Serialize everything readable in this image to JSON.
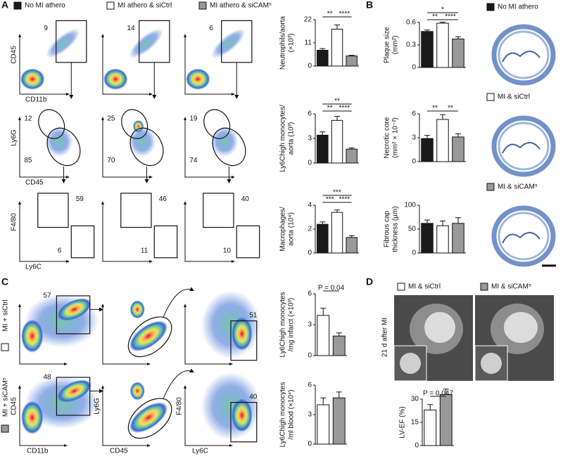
{
  "panel_letters": [
    "A",
    "B",
    "C",
    "D"
  ],
  "legend_a": [
    {
      "text": "No MI athero",
      "color": "#1a1a1a"
    },
    {
      "text": "MI athero & siCtrl",
      "color": "#ffffff"
    },
    {
      "text": "MI athero & siCAM⁵",
      "color": "#999999"
    }
  ],
  "flow_a": [
    {
      "x": "CD11b",
      "y": "CD45",
      "gates": [
        [
          9
        ],
        [
          14
        ],
        [
          6
        ]
      ]
    },
    {
      "x": "CD45",
      "y": "Ly6G",
      "gates": [
        [
          12,
          85
        ],
        [
          25,
          70
        ],
        [
          19,
          74
        ]
      ]
    },
    {
      "x": "Ly6C",
      "y": "F4/80",
      "gates": [
        [
          59,
          6
        ],
        [
          46,
          11
        ],
        [
          40,
          10
        ]
      ]
    }
  ],
  "legend_b": [
    {
      "text": "No MI athero",
      "color": "#1a1a1a"
    },
    {
      "text": "MI & siCtrl",
      "color": "#ffffff"
    },
    {
      "text": "MI & siCAM⁵",
      "color": "#999999"
    }
  ],
  "flow_c": {
    "x": [
      "CD11b",
      "CD45",
      "Ly6C"
    ],
    "y": [
      "CD45",
      "Ly6G",
      "F4/80"
    ],
    "rows": [
      {
        "label": "MI + siCtrl",
        "color": "#ffffff",
        "gates": [
          57,
          51
        ]
      },
      {
        "label": "MI + siCAM⁵",
        "color": "#999999",
        "gates": [
          48,
          40
        ]
      }
    ]
  },
  "panel_d": {
    "legend": [
      {
        "text": "MI & siCtrl",
        "color": "#ffffff"
      },
      {
        "text": "MI & siCAM⁵",
        "color": "#999999"
      }
    ],
    "side_label": "21 d after MI"
  },
  "chart_data": [
    {
      "type": "bar",
      "ylabel": [
        "Neutrophils/aorta",
        "(×10³)"
      ],
      "values": [
        7.5,
        17.5,
        4.8
      ],
      "errors": [
        0.8,
        2.0,
        0.3
      ],
      "colors": [
        "#1a1a1a",
        "#ffffff",
        "#999999"
      ],
      "ylim": [
        0,
        22
      ],
      "yticks": [
        0,
        11,
        22
      ],
      "significance": [
        {
          "bars": [
            0,
            1
          ],
          "label": "**"
        },
        {
          "bars": [
            1,
            2
          ],
          "label": "****"
        }
      ]
    },
    {
      "type": "bar",
      "ylabel": [
        "Ly6Chigh monocytes/",
        "aorta (10³)"
      ],
      "values": [
        3.4,
        5.2,
        1.7
      ],
      "errors": [
        0.4,
        0.5,
        0.15
      ],
      "colors": [
        "#1a1a1a",
        "#ffffff",
        "#999999"
      ],
      "ylim": [
        0,
        6
      ],
      "yticks": [
        0,
        3,
        6
      ],
      "significance": [
        {
          "bars": [
            0,
            1
          ],
          "label": "**"
        },
        {
          "bars": [
            1,
            2
          ],
          "label": "****"
        },
        {
          "bars": [
            0,
            2
          ],
          "label": "**"
        }
      ]
    },
    {
      "type": "bar",
      "ylabel": [
        "Macrophages/",
        "aorta (10⁴)"
      ],
      "values": [
        2.4,
        3.4,
        1.3
      ],
      "errors": [
        0.2,
        0.2,
        0.15
      ],
      "colors": [
        "#1a1a1a",
        "#ffffff",
        "#999999"
      ],
      "ylim": [
        0,
        4
      ],
      "yticks": [
        0,
        2,
        4
      ],
      "significance": [
        {
          "bars": [
            0,
            1
          ],
          "label": "***"
        },
        {
          "bars": [
            1,
            2
          ],
          "label": "****"
        },
        {
          "bars": [
            0,
            2
          ],
          "label": "***"
        }
      ]
    },
    {
      "type": "bar",
      "ylabel": [
        "Plaque size",
        "(mm²)"
      ],
      "values": [
        0.48,
        0.59,
        0.38
      ],
      "errors": [
        0.02,
        0.015,
        0.03
      ],
      "colors": [
        "#1a1a1a",
        "#ffffff",
        "#999999"
      ],
      "ylim": [
        0,
        0.6
      ],
      "yticks": [
        0,
        0.3,
        0.6
      ],
      "significance": [
        {
          "bars": [
            0,
            1
          ],
          "label": "**"
        },
        {
          "bars": [
            1,
            2
          ],
          "label": "****"
        },
        {
          "bars": [
            0,
            2
          ],
          "label": "*"
        }
      ]
    },
    {
      "type": "bar",
      "ylabel": [
        "Necrotic core",
        "(mm² × 10⁻²)"
      ],
      "values": [
        2.9,
        5.3,
        3.1
      ],
      "errors": [
        0.4,
        0.6,
        0.4
      ],
      "colors": [
        "#1a1a1a",
        "#ffffff",
        "#999999"
      ],
      "ylim": [
        0,
        6
      ],
      "yticks": [
        0,
        3,
        6
      ],
      "significance": [
        {
          "bars": [
            0,
            1
          ],
          "label": "**"
        },
        {
          "bars": [
            1,
            2
          ],
          "label": "**"
        }
      ]
    },
    {
      "type": "bar",
      "ylabel": [
        "Fibrous cap",
        "thickness (µm)"
      ],
      "values": [
        62,
        57,
        62
      ],
      "errors": [
        7,
        10,
        12
      ],
      "colors": [
        "#1a1a1a",
        "#ffffff",
        "#999999"
      ],
      "ylim": [
        0,
        100
      ],
      "yticks": [
        0,
        50,
        100
      ],
      "significance": []
    },
    {
      "type": "bar",
      "ylabel": [
        "Ly6Chigh monocytes",
        "/mg infarct (×10³)"
      ],
      "values": [
        3.9,
        1.9
      ],
      "errors": [
        0.7,
        0.3
      ],
      "colors": [
        "#ffffff",
        "#999999"
      ],
      "ylim": [
        0,
        6
      ],
      "yticks": [
        0,
        3,
        6
      ],
      "significance": [
        {
          "bars": [
            0,
            1
          ],
          "label": "P = 0.04"
        }
      ]
    },
    {
      "type": "bar",
      "ylabel": [
        "Ly6Chigh monocytes",
        "/ml blood (×10⁴)"
      ],
      "values": [
        4.0,
        4.7
      ],
      "errors": [
        0.7,
        0.6
      ],
      "colors": [
        "#ffffff",
        "#999999"
      ],
      "ylim": [
        0,
        6
      ],
      "yticks": [
        0,
        3,
        6
      ],
      "significance": []
    },
    {
      "type": "bar",
      "ylabel": [
        "LV-EF (%)"
      ],
      "values": [
        23,
        33
      ],
      "errors": [
        3.5,
        3.5
      ],
      "colors": [
        "#ffffff",
        "#999999"
      ],
      "ylim": [
        0,
        30
      ],
      "yticks": [
        0,
        15,
        30
      ],
      "significance": [
        {
          "bars": [
            0,
            1
          ],
          "label": "P = 0.047"
        }
      ]
    }
  ]
}
